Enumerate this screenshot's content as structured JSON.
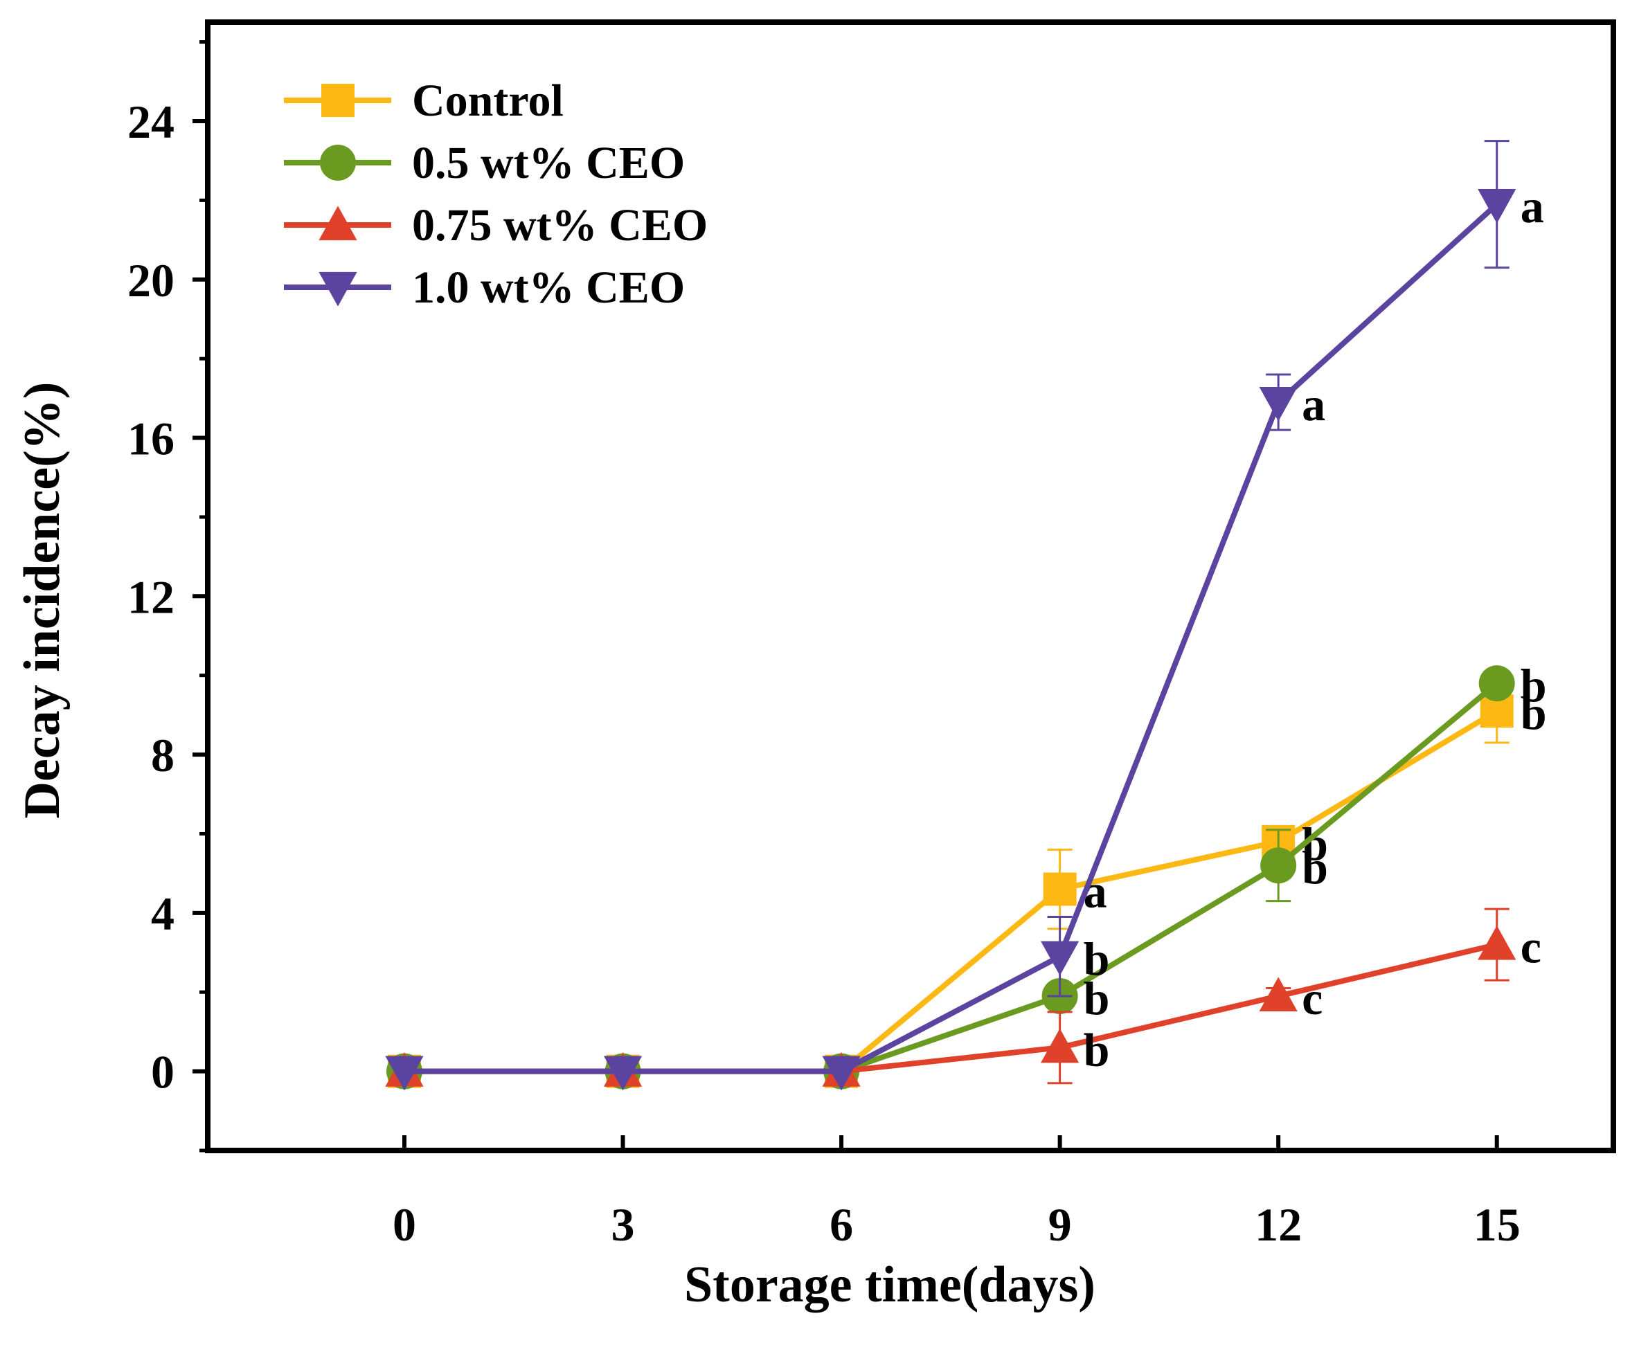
{
  "chart_data": {
    "type": "line",
    "xlabel": "Storage time(days)",
    "ylabel": "Decay incidence(%)",
    "x": [
      0,
      3,
      6,
      9,
      12,
      15
    ],
    "xticks": [
      "0",
      "3",
      "6",
      "9",
      "12",
      "15"
    ],
    "xlim": [
      -2.7,
      16.6
    ],
    "yticks": [
      "0",
      "4",
      "8",
      "12",
      "16",
      "20",
      "24"
    ],
    "ytick_values": [
      0,
      4,
      8,
      12,
      16,
      20,
      24
    ],
    "ylim": [
      -2,
      26.5
    ],
    "grid": false,
    "legend_position": "top-left",
    "series": [
      {
        "name": "Control",
        "color": "#FDB813",
        "marker": "square",
        "values": [
          0,
          0,
          0,
          4.6,
          5.8,
          9.1
        ],
        "errors": [
          0,
          0,
          0,
          1.0,
          0.3,
          0.8
        ],
        "labels": [
          "",
          "",
          "",
          "a",
          "b",
          "b"
        ]
      },
      {
        "name": "0.5 wt% CEO",
        "color": "#6A9A1F",
        "marker": "circle",
        "values": [
          0,
          0,
          0,
          1.9,
          5.2,
          9.8
        ],
        "errors": [
          0,
          0,
          0,
          0.3,
          0.9,
          0.3
        ],
        "labels": [
          "",
          "",
          "",
          "b",
          "b",
          "b"
        ]
      },
      {
        "name": "0.75 wt% CEO",
        "color": "#E0412B",
        "marker": "triangle-up",
        "values": [
          0,
          0,
          0,
          0.6,
          1.9,
          3.2
        ],
        "errors": [
          0,
          0,
          0,
          0.9,
          0.2,
          0.9
        ],
        "labels": [
          "",
          "",
          "",
          "b",
          "c",
          "c"
        ]
      },
      {
        "name": "1.0 wt% CEO",
        "color": "#5B44A0",
        "marker": "triangle-down",
        "values": [
          0,
          0,
          0,
          2.9,
          16.9,
          21.9
        ],
        "errors": [
          0,
          0,
          0,
          1.0,
          0.7,
          1.6
        ],
        "labels": [
          "",
          "",
          "",
          "b",
          "a",
          "a"
        ]
      }
    ]
  }
}
